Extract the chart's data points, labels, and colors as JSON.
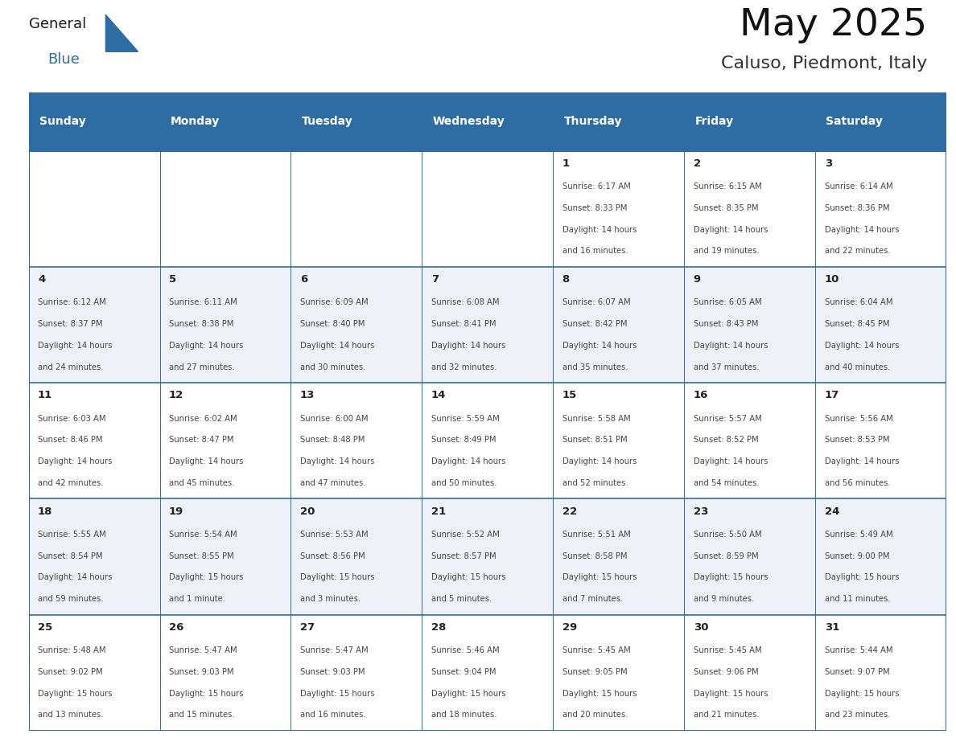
{
  "title": "May 2025",
  "subtitle": "Caluso, Piedmont, Italy",
  "header_bg": "#2E6DA4",
  "header_text_color": "#FFFFFF",
  "header_days": [
    "Sunday",
    "Monday",
    "Tuesday",
    "Wednesday",
    "Thursday",
    "Friday",
    "Saturday"
  ],
  "cell_bg_odd": "#FFFFFF",
  "cell_bg_even": "#EEF2F8",
  "text_color_day": "#222222",
  "text_color_info": "#444444",
  "border_color": "#2E6DA4",
  "logo_text1": "General",
  "logo_text2": "Blue",
  "logo_color1": "#1a1a1a",
  "logo_color2": "#2E6DA4",
  "weeks": [
    [
      {
        "day": "",
        "info": ""
      },
      {
        "day": "",
        "info": ""
      },
      {
        "day": "",
        "info": ""
      },
      {
        "day": "",
        "info": ""
      },
      {
        "day": "1",
        "info": "Sunrise: 6:17 AM\nSunset: 8:33 PM\nDaylight: 14 hours\nand 16 minutes."
      },
      {
        "day": "2",
        "info": "Sunrise: 6:15 AM\nSunset: 8:35 PM\nDaylight: 14 hours\nand 19 minutes."
      },
      {
        "day": "3",
        "info": "Sunrise: 6:14 AM\nSunset: 8:36 PM\nDaylight: 14 hours\nand 22 minutes."
      }
    ],
    [
      {
        "day": "4",
        "info": "Sunrise: 6:12 AM\nSunset: 8:37 PM\nDaylight: 14 hours\nand 24 minutes."
      },
      {
        "day": "5",
        "info": "Sunrise: 6:11 AM\nSunset: 8:38 PM\nDaylight: 14 hours\nand 27 minutes."
      },
      {
        "day": "6",
        "info": "Sunrise: 6:09 AM\nSunset: 8:40 PM\nDaylight: 14 hours\nand 30 minutes."
      },
      {
        "day": "7",
        "info": "Sunrise: 6:08 AM\nSunset: 8:41 PM\nDaylight: 14 hours\nand 32 minutes."
      },
      {
        "day": "8",
        "info": "Sunrise: 6:07 AM\nSunset: 8:42 PM\nDaylight: 14 hours\nand 35 minutes."
      },
      {
        "day": "9",
        "info": "Sunrise: 6:05 AM\nSunset: 8:43 PM\nDaylight: 14 hours\nand 37 minutes."
      },
      {
        "day": "10",
        "info": "Sunrise: 6:04 AM\nSunset: 8:45 PM\nDaylight: 14 hours\nand 40 minutes."
      }
    ],
    [
      {
        "day": "11",
        "info": "Sunrise: 6:03 AM\nSunset: 8:46 PM\nDaylight: 14 hours\nand 42 minutes."
      },
      {
        "day": "12",
        "info": "Sunrise: 6:02 AM\nSunset: 8:47 PM\nDaylight: 14 hours\nand 45 minutes."
      },
      {
        "day": "13",
        "info": "Sunrise: 6:00 AM\nSunset: 8:48 PM\nDaylight: 14 hours\nand 47 minutes."
      },
      {
        "day": "14",
        "info": "Sunrise: 5:59 AM\nSunset: 8:49 PM\nDaylight: 14 hours\nand 50 minutes."
      },
      {
        "day": "15",
        "info": "Sunrise: 5:58 AM\nSunset: 8:51 PM\nDaylight: 14 hours\nand 52 minutes."
      },
      {
        "day": "16",
        "info": "Sunrise: 5:57 AM\nSunset: 8:52 PM\nDaylight: 14 hours\nand 54 minutes."
      },
      {
        "day": "17",
        "info": "Sunrise: 5:56 AM\nSunset: 8:53 PM\nDaylight: 14 hours\nand 56 minutes."
      }
    ],
    [
      {
        "day": "18",
        "info": "Sunrise: 5:55 AM\nSunset: 8:54 PM\nDaylight: 14 hours\nand 59 minutes."
      },
      {
        "day": "19",
        "info": "Sunrise: 5:54 AM\nSunset: 8:55 PM\nDaylight: 15 hours\nand 1 minute."
      },
      {
        "day": "20",
        "info": "Sunrise: 5:53 AM\nSunset: 8:56 PM\nDaylight: 15 hours\nand 3 minutes."
      },
      {
        "day": "21",
        "info": "Sunrise: 5:52 AM\nSunset: 8:57 PM\nDaylight: 15 hours\nand 5 minutes."
      },
      {
        "day": "22",
        "info": "Sunrise: 5:51 AM\nSunset: 8:58 PM\nDaylight: 15 hours\nand 7 minutes."
      },
      {
        "day": "23",
        "info": "Sunrise: 5:50 AM\nSunset: 8:59 PM\nDaylight: 15 hours\nand 9 minutes."
      },
      {
        "day": "24",
        "info": "Sunrise: 5:49 AM\nSunset: 9:00 PM\nDaylight: 15 hours\nand 11 minutes."
      }
    ],
    [
      {
        "day": "25",
        "info": "Sunrise: 5:48 AM\nSunset: 9:02 PM\nDaylight: 15 hours\nand 13 minutes."
      },
      {
        "day": "26",
        "info": "Sunrise: 5:47 AM\nSunset: 9:03 PM\nDaylight: 15 hours\nand 15 minutes."
      },
      {
        "day": "27",
        "info": "Sunrise: 5:47 AM\nSunset: 9:03 PM\nDaylight: 15 hours\nand 16 minutes."
      },
      {
        "day": "28",
        "info": "Sunrise: 5:46 AM\nSunset: 9:04 PM\nDaylight: 15 hours\nand 18 minutes."
      },
      {
        "day": "29",
        "info": "Sunrise: 5:45 AM\nSunset: 9:05 PM\nDaylight: 15 hours\nand 20 minutes."
      },
      {
        "day": "30",
        "info": "Sunrise: 5:45 AM\nSunset: 9:06 PM\nDaylight: 15 hours\nand 21 minutes."
      },
      {
        "day": "31",
        "info": "Sunrise: 5:44 AM\nSunset: 9:07 PM\nDaylight: 15 hours\nand 23 minutes."
      }
    ]
  ]
}
